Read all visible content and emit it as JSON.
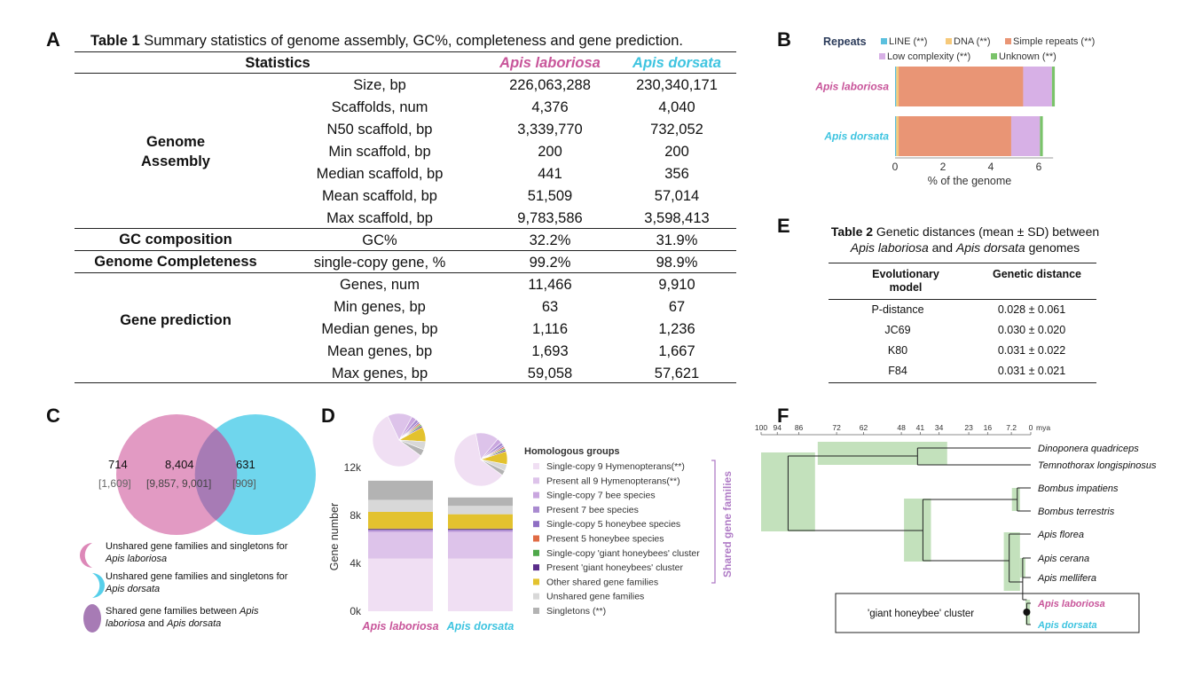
{
  "panels": {
    "a": "A",
    "b": "B",
    "c": "C",
    "d": "D",
    "e": "E",
    "f": "F"
  },
  "table1": {
    "title_bold": "Table 1",
    "title_rest": "Summary statistics of genome assembly, GC%, completeness and gene prediction.",
    "header": {
      "statistics": "Statistics",
      "col1": "Apis laboriosa",
      "col2": "Apis dorsata"
    },
    "groups": {
      "assembly_1": "Genome",
      "assembly_2": "Assembly",
      "gc": "GC composition",
      "completeness": "Genome Completeness",
      "prediction": "Gene prediction"
    },
    "rows": [
      {
        "stat": "Size, bp",
        "v1": "226,063,288",
        "v2": "230,340,171"
      },
      {
        "stat": "Scaffolds, num",
        "v1": "4,376",
        "v2": "4,040"
      },
      {
        "stat": "N50 scaffold, bp",
        "v1": "3,339,770",
        "v2": "732,052"
      },
      {
        "stat": "Min scaffold, bp",
        "v1": "200",
        "v2": "200"
      },
      {
        "stat": "Median scaffold, bp",
        "v1": "441",
        "v2": "356"
      },
      {
        "stat": "Mean scaffold, bp",
        "v1": "51,509",
        "v2": "57,014"
      },
      {
        "stat": "Max scaffold, bp",
        "v1": "9,783,586",
        "v2": "3,598,413"
      },
      {
        "stat": "GC%",
        "v1": "32.2%",
        "v2": "31.9%"
      },
      {
        "stat": "single-copy gene, %",
        "v1": "99.2%",
        "v2": "98.9%"
      },
      {
        "stat": "Genes, num",
        "v1": "11,466",
        "v2": "9,910"
      },
      {
        "stat": "Min genes, bp",
        "v1": "63",
        "v2": "67"
      },
      {
        "stat": "Median genes, bp",
        "v1": "1,116",
        "v2": "1,236"
      },
      {
        "stat": "Mean genes, bp",
        "v1": "1,693",
        "v2": "1,667"
      },
      {
        "stat": "Max genes, bp",
        "v1": "59,058",
        "v2": "57,621"
      }
    ]
  },
  "colors": {
    "laboriosa": "#c8559a",
    "dorsata": "#3ec4e0",
    "shared": "#a77bb5"
  },
  "chart_data": [
    {
      "type": "bar",
      "orientation": "horizontal",
      "stacked": true,
      "legend_title": "Repeats",
      "categories": [
        "Apis laboriosa",
        "Apis dorsata"
      ],
      "series": [
        {
          "name": "LINE (**)",
          "color": "#5bc0de",
          "values": [
            0.05,
            0.05
          ]
        },
        {
          "name": "DNA (**)",
          "color": "#f6c97a",
          "values": [
            0.1,
            0.1
          ]
        },
        {
          "name": "Simple repeats (**)",
          "color": "#e99575",
          "values": [
            5.2,
            4.7
          ]
        },
        {
          "name": "Low complexity (**)",
          "color": "#d7b0e6",
          "values": [
            1.2,
            1.2
          ]
        },
        {
          "name": "Unknown (**)",
          "color": "#7ac36a",
          "values": [
            0.12,
            0.12
          ]
        }
      ],
      "xlabel": "% of the genome",
      "xticks": [
        "0",
        "2",
        "4",
        "6"
      ],
      "xlim": [
        0,
        6.6
      ]
    },
    {
      "type": "bar",
      "stacked": true,
      "legend_title": "Homologous groups",
      "bracket_label": "Shared gene families",
      "categories": [
        "Apis laboriosa",
        "Apis dorsata"
      ],
      "ylabel": "Gene number",
      "yticks": [
        "0k",
        "4k",
        "8k",
        "12k"
      ],
      "ylim": [
        0,
        12500
      ],
      "series": [
        {
          "name": "Single-copy 9 Hymenopterans(**)",
          "color": "#f0dff3",
          "values": [
            4400,
            4400
          ]
        },
        {
          "name": "Present all 9 Hymenopterans(**)",
          "color": "#ddc3ea",
          "values": [
            2200,
            2200
          ]
        },
        {
          "name": "Single-copy 7 bee species",
          "color": "#c9a6df",
          "values": [
            100,
            100
          ]
        },
        {
          "name": "Present 7 bee species",
          "color": "#a98ad0",
          "values": [
            80,
            80
          ]
        },
        {
          "name": "Single-copy 5 honeybee species",
          "color": "#8f6fc4",
          "values": [
            50,
            50
          ]
        },
        {
          "name": "Present 5 honeybee species",
          "color": "#e06b44",
          "values": [
            30,
            30
          ]
        },
        {
          "name": "Single-copy 'giant honeybees' cluster",
          "color": "#4fa84a",
          "values": [
            20,
            20
          ]
        },
        {
          "name": "Present 'giant honeybees' cluster",
          "color": "#5a2d8a",
          "values": [
            20,
            20
          ]
        },
        {
          "name": "Other shared gene families",
          "color": "#e3c22e",
          "values": [
            1400,
            1200
          ]
        },
        {
          "name": "Unshared gene families",
          "color": "#d8d8d8",
          "values": [
            1000,
            700
          ]
        },
        {
          "name": "Singletons (**)",
          "color": "#b3b3b3",
          "values": [
            1600,
            700
          ]
        }
      ],
      "pies": [
        {
          "category": "Apis laboriosa",
          "values": [
            58,
            15,
            3,
            2,
            1,
            1,
            1,
            1,
            9,
            5,
            4
          ]
        },
        {
          "category": "Apis dorsata",
          "values": [
            62,
            14,
            3,
            2,
            1,
            1,
            1,
            1,
            8,
            4,
            3
          ]
        }
      ]
    }
  ],
  "venn": {
    "left": "714",
    "center": "8,404",
    "right": "631",
    "left_sub": "[1,609]",
    "center_sub": "[9,857,  9,001]",
    "right_sub": "[909]",
    "legend": [
      {
        "text": "Unshared gene families and singletons for ",
        "italic": "Apis laboriosa"
      },
      {
        "text": "Unshared gene families and singletons for ",
        "italic": "Apis dorsata"
      },
      {
        "text": "Shared gene families between ",
        "italic": "Apis laboriosa",
        "text2": " and ",
        "italic2": "Apis dorsata"
      }
    ]
  },
  "table2": {
    "title_bold": "Table 2",
    "title_rest": "Genetic distances (mean ± SD) between",
    "title_line2_a": "Apis laboriosa",
    "title_line2_b": " and ",
    "title_line2_c": "Apis dorsata",
    "title_line2_d": " genomes",
    "col1": "Evolutionary\nmodel",
    "col1_l1": "Evolutionary",
    "col1_l2": "model",
    "col2": "Genetic distance",
    "rows": [
      {
        "model": "P-distance",
        "dist": "0.028 ± 0.061"
      },
      {
        "model": "JC69",
        "dist": "0.030 ± 0.020"
      },
      {
        "model": "K80",
        "dist": "0.031 ± 0.022"
      },
      {
        "model": "F84",
        "dist": "0.031 ± 0.021"
      }
    ]
  },
  "tree": {
    "axis_unit": "mya",
    "ticks": [
      "100",
      "94",
      "86",
      "72",
      "62",
      "48",
      "41",
      "34",
      "23",
      "16",
      "7.2",
      "0"
    ],
    "taxa": [
      "Dinoponera quadriceps",
      "Temnothorax longispinosus",
      "Bombus impatiens",
      "Bombus terrestris",
      "Apis florea",
      "Apis cerana",
      "Apis mellifera",
      "Apis laboriosa",
      "Apis dorsata"
    ],
    "cluster_label": "'giant honeybee' cluster"
  }
}
